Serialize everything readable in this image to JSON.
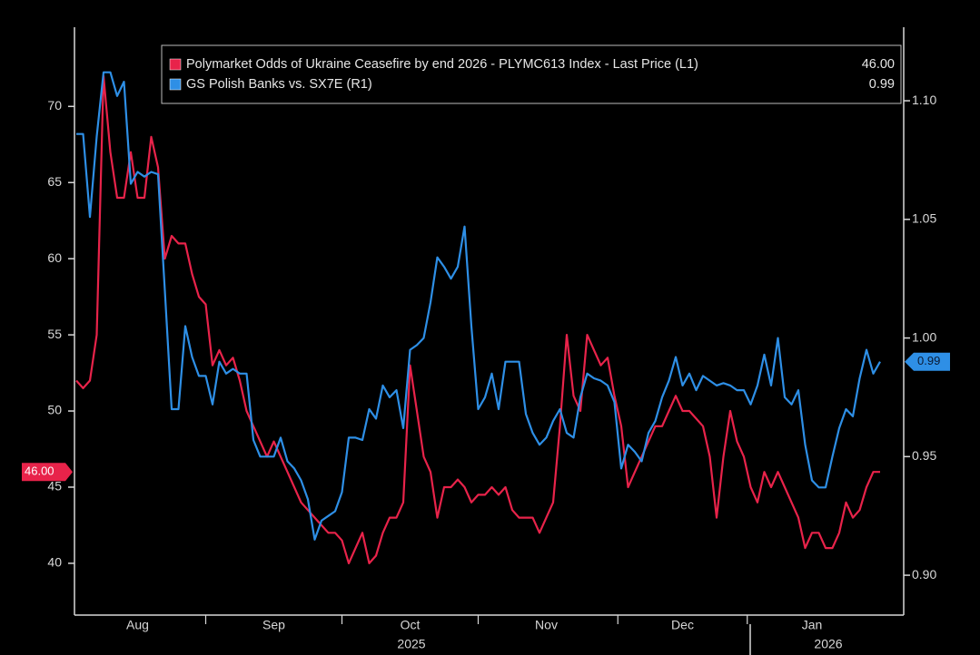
{
  "chart_data": {
    "type": "line",
    "categories": [
      null,
      null,
      null,
      null,
      null,
      null,
      null,
      null,
      null,
      "Aug",
      null,
      null,
      null,
      null,
      null,
      null,
      null,
      null,
      null,
      null,
      null,
      null,
      null,
      null,
      null,
      null,
      null,
      null,
      null,
      "Sep",
      null,
      null,
      null,
      null,
      null,
      null,
      null,
      null,
      null,
      null,
      null,
      null,
      null,
      null,
      null,
      null,
      null,
      null,
      null,
      "Oct",
      null,
      null,
      null,
      null,
      null,
      null,
      null,
      null,
      null,
      null,
      null,
      null,
      null,
      null,
      null,
      null,
      null,
      null,
      null,
      "Nov",
      null,
      null,
      null,
      null,
      null,
      null,
      null,
      null,
      null,
      null,
      null,
      null,
      null,
      null,
      null,
      null,
      null,
      null,
      null,
      "Dec",
      null,
      null,
      null,
      null,
      null,
      null,
      null,
      null,
      null,
      null,
      null,
      null,
      null,
      null,
      null,
      null,
      null,
      null,
      "Jan",
      null,
      null,
      null,
      null,
      null,
      null,
      null,
      null,
      null,
      null
    ],
    "year_labels": [
      "2025",
      "2026"
    ],
    "series": [
      {
        "name": "Polymarket Odds of Ukraine Ceasefire by end 2026 - PLYMC613 Index - Last Price (L1)",
        "color": "#e8234a",
        "axis": "y",
        "last": {
          "value": 46,
          "label": "46.00"
        },
        "values": [
          52,
          51.5,
          52,
          55,
          72,
          67,
          64,
          64,
          67,
          64,
          64,
          68,
          66,
          60,
          61.5,
          61,
          61,
          59,
          57.5,
          57,
          53,
          54,
          53,
          53.5,
          52,
          50,
          49,
          48,
          47,
          48,
          47,
          46,
          45,
          44,
          43.5,
          43,
          42.5,
          42,
          42,
          41.5,
          40,
          41,
          42,
          40,
          40.5,
          42,
          43,
          43,
          44,
          53,
          50,
          47,
          46,
          43,
          45,
          45,
          45.5,
          45,
          44,
          44.5,
          44.5,
          45,
          44.5,
          45,
          43.5,
          43,
          43,
          43,
          42,
          43,
          44,
          49,
          55,
          51,
          50,
          55,
          54,
          53,
          53.5,
          51,
          49,
          45,
          46,
          47,
          48,
          49,
          49,
          50,
          51,
          50,
          50,
          49.5,
          49,
          47,
          43,
          47,
          50,
          48,
          47,
          45,
          44,
          46,
          45,
          46,
          45,
          44,
          43,
          41,
          42,
          42,
          41,
          41,
          42,
          44,
          43,
          43.5,
          45,
          46,
          46
        ]
      },
      {
        "name": "GS Polish Banks vs. SX7E (R1)",
        "color": "#2e8fe6",
        "axis": "y2",
        "last": {
          "value": 0.99,
          "label": "0.99"
        },
        "values": [
          1.086,
          1.086,
          1.051,
          1.085,
          1.112,
          1.112,
          1.102,
          1.108,
          1.065,
          1.07,
          1.068,
          1.07,
          1.069,
          1.02,
          0.97,
          0.97,
          1.005,
          0.992,
          0.984,
          0.984,
          0.972,
          0.99,
          0.985,
          0.987,
          0.985,
          0.985,
          0.957,
          0.95,
          0.95,
          0.95,
          0.958,
          0.948,
          0.945,
          0.94,
          0.932,
          0.915,
          0.923,
          0.925,
          0.927,
          0.935,
          0.958,
          0.958,
          0.957,
          0.97,
          0.966,
          0.98,
          0.975,
          0.978,
          0.962,
          0.995,
          0.997,
          1.0,
          1.015,
          1.034,
          1.03,
          1.025,
          1.03,
          1.047,
          1.005,
          0.97,
          0.975,
          0.985,
          0.97,
          0.99,
          0.99,
          0.99,
          0.968,
          0.96,
          0.955,
          0.958,
          0.965,
          0.97,
          0.96,
          0.958,
          0.975,
          0.985,
          0.983,
          0.982,
          0.98,
          0.973,
          0.945,
          0.955,
          0.952,
          0.948,
          0.96,
          0.965,
          0.975,
          0.982,
          0.992,
          0.98,
          0.985,
          0.978,
          0.984,
          0.982,
          0.98,
          0.981,
          0.98,
          0.978,
          0.978,
          0.972,
          0.98,
          0.993,
          0.98,
          1.0,
          0.975,
          0.972,
          0.978,
          0.955,
          0.94,
          0.937,
          0.937,
          0.95,
          0.962,
          0.97,
          0.967,
          0.983,
          0.995,
          0.985,
          0.99
        ]
      }
    ],
    "ylim": [
      36.6,
      75.2
    ],
    "yticks": [
      40,
      45,
      50,
      55,
      60,
      65,
      70
    ],
    "y2lim": [
      0.8832,
      1.131
    ],
    "y2ticks": [
      {
        "value": 0.9,
        "label": "0.90"
      },
      {
        "value": 0.95,
        "label": "0.95"
      },
      {
        "value": 1.0,
        "label": "1.00"
      },
      {
        "value": 1.05,
        "label": "1.05"
      },
      {
        "value": 1.1,
        "label": "1.10"
      }
    ],
    "grid": false,
    "legend": "top"
  }
}
